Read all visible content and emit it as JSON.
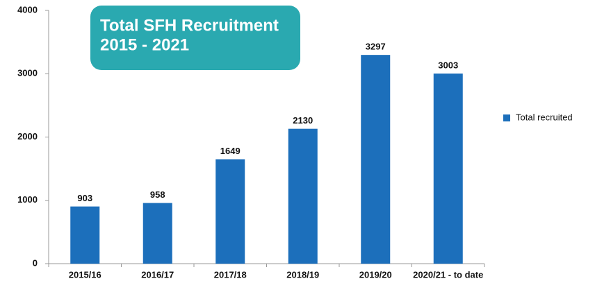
{
  "chart_data": {
    "type": "bar",
    "title": [
      "Total SFH Recruitment",
      "2015 - 2021"
    ],
    "categories": [
      "2015/16",
      "2016/17",
      "2017/18",
      "2018/19",
      "2019/20",
      "2020/21 - to date"
    ],
    "series": [
      {
        "name": "Total recruited",
        "color": "#1c6fbb",
        "values": [
          903,
          958,
          1649,
          2130,
          3297,
          3003
        ]
      }
    ],
    "ylim": [
      0,
      4000
    ],
    "yticks": [
      0,
      1000,
      2000,
      3000,
      4000
    ],
    "legend": "right"
  }
}
